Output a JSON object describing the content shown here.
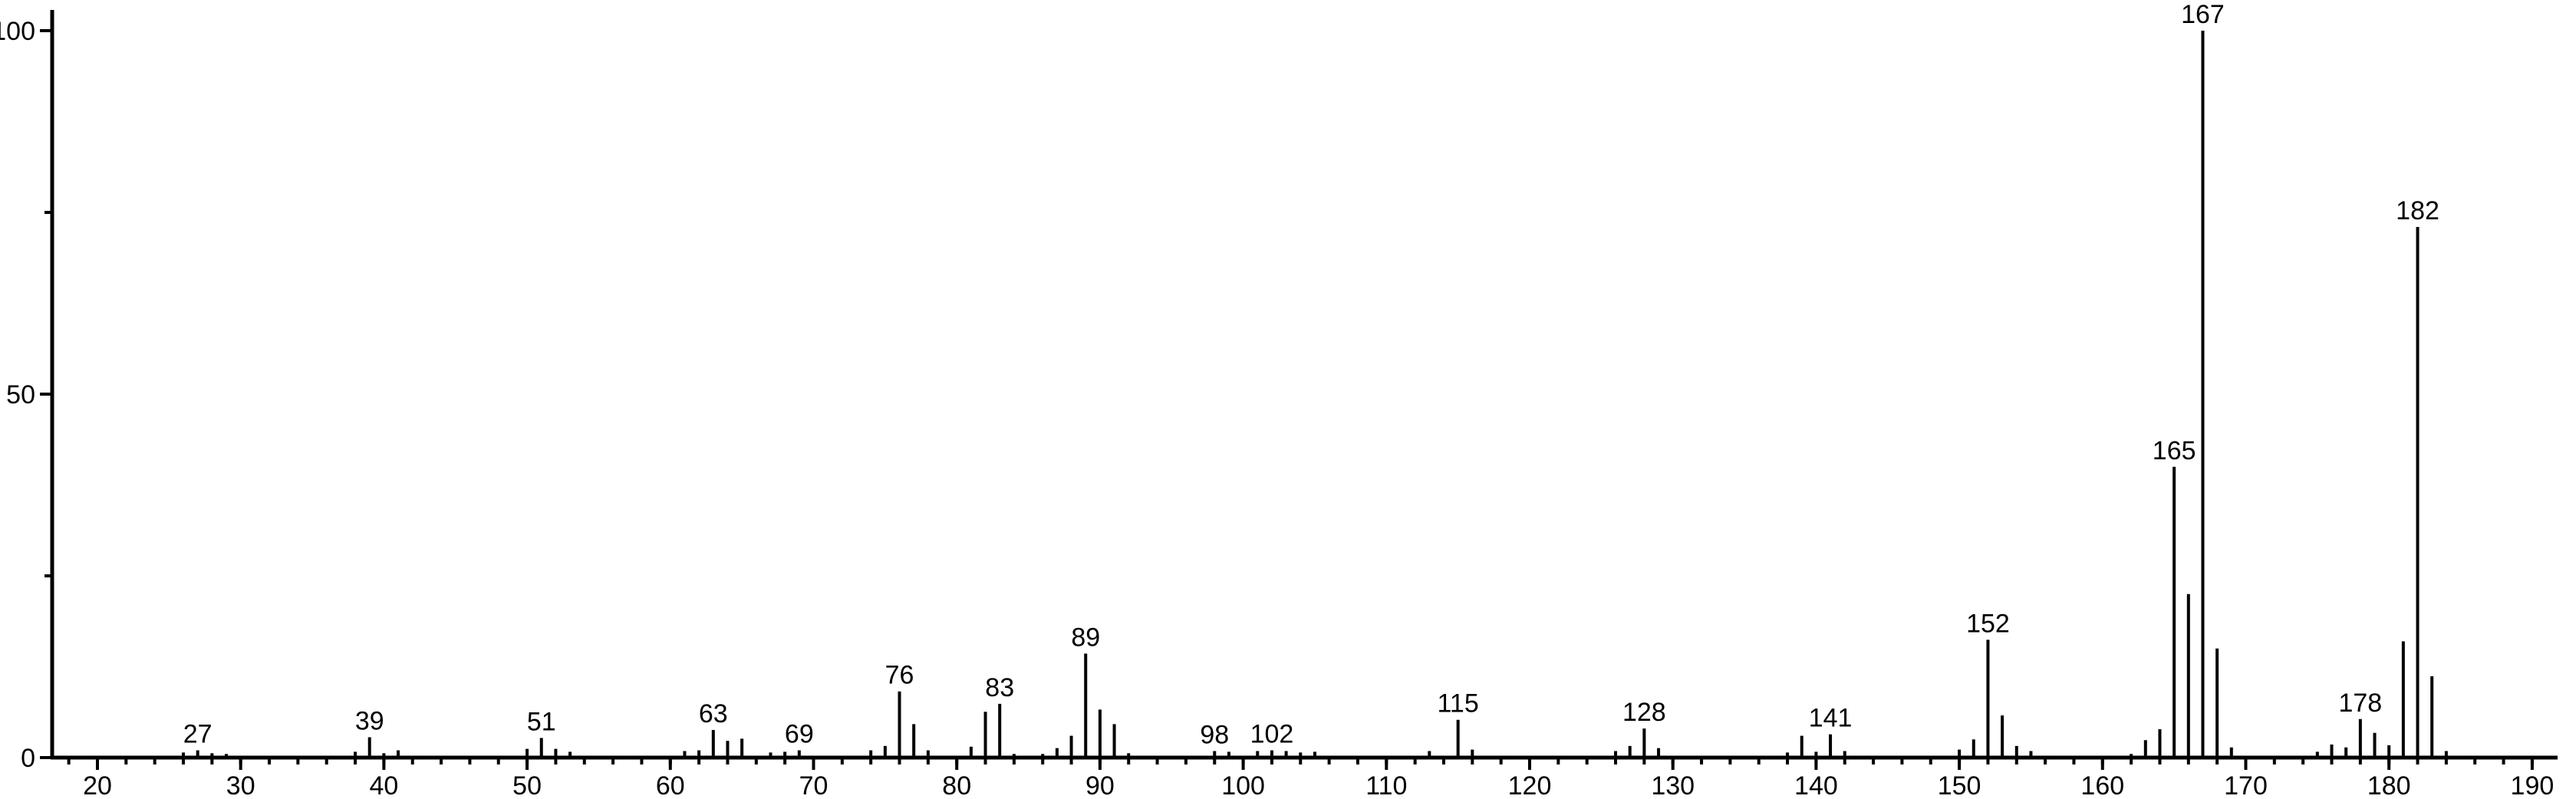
{
  "chart_data": {
    "type": "bar",
    "subtype": "mass-spectrum-stick-plot",
    "title": "",
    "xlabel": "",
    "ylabel": "",
    "xlim": [
      16.8,
      191.7
    ],
    "ylim": [
      0,
      105
    ],
    "grid": false,
    "legend": false,
    "axis_color": "#000000",
    "peak_color": "#000000",
    "background_color": "#ffffff",
    "x_tick_labels": [
      20,
      30,
      40,
      50,
      60,
      70,
      80,
      90,
      100,
      110,
      120,
      130,
      140,
      150,
      160,
      170,
      180,
      190
    ],
    "x_minor_tick_step": 2,
    "x_minor_tick_start": 18,
    "x_minor_tick_end": 190,
    "y_tick_labels": [
      0,
      50,
      100
    ],
    "y_minor_ticks": [
      25,
      75
    ],
    "labeled_peaks": [
      27,
      39,
      51,
      63,
      69,
      76,
      83,
      89,
      98,
      102,
      115,
      128,
      141,
      152,
      165,
      167,
      178,
      182
    ],
    "peaks": [
      {
        "mz": 26,
        "intensity": 0.7
      },
      {
        "mz": 27,
        "intensity": 1.0
      },
      {
        "mz": 28,
        "intensity": 0.6
      },
      {
        "mz": 29,
        "intensity": 0.5
      },
      {
        "mz": 38,
        "intensity": 0.8
      },
      {
        "mz": 39,
        "intensity": 2.8
      },
      {
        "mz": 40,
        "intensity": 0.6
      },
      {
        "mz": 41,
        "intensity": 1.0
      },
      {
        "mz": 50,
        "intensity": 1.2
      },
      {
        "mz": 51,
        "intensity": 2.7
      },
      {
        "mz": 52,
        "intensity": 1.2
      },
      {
        "mz": 53,
        "intensity": 0.8
      },
      {
        "mz": 61,
        "intensity": 0.9
      },
      {
        "mz": 62,
        "intensity": 1.0
      },
      {
        "mz": 63,
        "intensity": 3.8
      },
      {
        "mz": 64,
        "intensity": 2.3
      },
      {
        "mz": 65,
        "intensity": 2.6
      },
      {
        "mz": 67,
        "intensity": 0.7
      },
      {
        "mz": 68,
        "intensity": 0.8
      },
      {
        "mz": 69,
        "intensity": 1.0
      },
      {
        "mz": 74,
        "intensity": 1.0
      },
      {
        "mz": 75,
        "intensity": 1.6
      },
      {
        "mz": 76,
        "intensity": 9.1
      },
      {
        "mz": 77,
        "intensity": 4.6
      },
      {
        "mz": 78,
        "intensity": 1.0
      },
      {
        "mz": 81,
        "intensity": 1.5
      },
      {
        "mz": 82,
        "intensity": 6.3
      },
      {
        "mz": 83,
        "intensity": 7.4
      },
      {
        "mz": 84,
        "intensity": 0.5
      },
      {
        "mz": 86,
        "intensity": 0.5
      },
      {
        "mz": 87,
        "intensity": 1.3
      },
      {
        "mz": 88,
        "intensity": 3.0
      },
      {
        "mz": 89,
        "intensity": 14.3
      },
      {
        "mz": 90,
        "intensity": 6.6
      },
      {
        "mz": 91,
        "intensity": 4.6
      },
      {
        "mz": 92,
        "intensity": 0.6
      },
      {
        "mz": 98,
        "intensity": 0.9
      },
      {
        "mz": 99,
        "intensity": 0.8
      },
      {
        "mz": 101,
        "intensity": 0.9
      },
      {
        "mz": 102,
        "intensity": 1.0
      },
      {
        "mz": 103,
        "intensity": 0.9
      },
      {
        "mz": 104,
        "intensity": 0.7
      },
      {
        "mz": 105,
        "intensity": 0.8
      },
      {
        "mz": 113,
        "intensity": 0.9
      },
      {
        "mz": 115,
        "intensity": 5.2
      },
      {
        "mz": 116,
        "intensity": 1.1
      },
      {
        "mz": 126,
        "intensity": 0.9
      },
      {
        "mz": 127,
        "intensity": 1.6
      },
      {
        "mz": 128,
        "intensity": 4.0
      },
      {
        "mz": 129,
        "intensity": 1.3
      },
      {
        "mz": 138,
        "intensity": 0.7
      },
      {
        "mz": 139,
        "intensity": 3.0
      },
      {
        "mz": 140,
        "intensity": 0.8
      },
      {
        "mz": 141,
        "intensity": 3.2
      },
      {
        "mz": 142,
        "intensity": 0.9
      },
      {
        "mz": 150,
        "intensity": 1.1
      },
      {
        "mz": 151,
        "intensity": 2.5
      },
      {
        "mz": 152,
        "intensity": 16.2
      },
      {
        "mz": 153,
        "intensity": 5.8
      },
      {
        "mz": 154,
        "intensity": 1.6
      },
      {
        "mz": 155,
        "intensity": 0.9
      },
      {
        "mz": 162,
        "intensity": 0.5
      },
      {
        "mz": 163,
        "intensity": 2.4
      },
      {
        "mz": 164,
        "intensity": 3.9
      },
      {
        "mz": 165,
        "intensity": 40.0
      },
      {
        "mz": 166,
        "intensity": 22.5
      },
      {
        "mz": 167,
        "intensity": 100.0
      },
      {
        "mz": 168,
        "intensity": 15.0
      },
      {
        "mz": 169,
        "intensity": 1.4
      },
      {
        "mz": 175,
        "intensity": 0.8
      },
      {
        "mz": 176,
        "intensity": 1.8
      },
      {
        "mz": 177,
        "intensity": 1.4
      },
      {
        "mz": 178,
        "intensity": 5.3
      },
      {
        "mz": 179,
        "intensity": 3.4
      },
      {
        "mz": 180,
        "intensity": 1.7
      },
      {
        "mz": 181,
        "intensity": 16.0
      },
      {
        "mz": 182,
        "intensity": 73.0
      },
      {
        "mz": 183,
        "intensity": 11.2
      },
      {
        "mz": 184,
        "intensity": 0.9
      }
    ]
  }
}
